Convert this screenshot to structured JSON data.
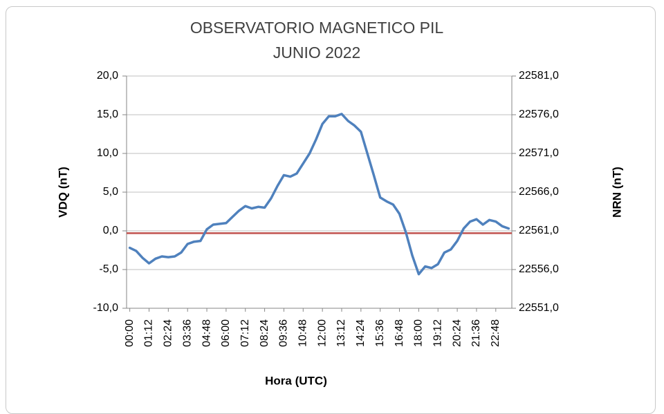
{
  "chart_data": {
    "type": "line",
    "title": "OBSERVATORIO MAGNETICO PIL",
    "subtitle": "JUNIO 2022",
    "x_label": "Hora (UTC)",
    "y_label": "VDQ (nT)",
    "y2_label": "NRN (nT)",
    "categories": [
      "00:00",
      null,
      null,
      "01:12",
      null,
      null,
      "02:24",
      null,
      null,
      "03:36",
      null,
      null,
      "04:48",
      null,
      null,
      "06:00",
      null,
      null,
      "07:12",
      null,
      null,
      "08:24",
      null,
      null,
      "09:36",
      null,
      null,
      "10:48",
      null,
      null,
      "12:00",
      null,
      null,
      "13:12",
      null,
      null,
      "14:24",
      null,
      null,
      "15:36",
      null,
      null,
      "16:48",
      null,
      null,
      "18:00",
      null,
      null,
      "19:12",
      null,
      null,
      "20:24",
      null,
      null,
      "21:36",
      null,
      null,
      "22:48",
      null,
      null
    ],
    "series": [
      {
        "color": "#4f81bd",
        "values": [
          -2.2,
          -2.6,
          -3.5,
          -4.2,
          -3.6,
          -3.3,
          -3.4,
          -3.3,
          -2.8,
          -1.7,
          -1.4,
          -1.3,
          0.2,
          0.8,
          0.9,
          1.0,
          1.8,
          2.6,
          3.2,
          2.9,
          3.1,
          3.0,
          4.2,
          5.8,
          7.2,
          7.0,
          7.4,
          8.7,
          10.0,
          11.8,
          13.8,
          14.8,
          14.8,
          15.1,
          14.2,
          13.6,
          12.8,
          10.0,
          7.2,
          4.3,
          3.8,
          3.4,
          2.2,
          -0.2,
          -3.2,
          -5.6,
          -4.6,
          -4.8,
          -4.3,
          -2.8,
          -2.4,
          -1.3,
          0.3,
          1.2,
          1.5,
          0.8,
          1.4,
          1.2,
          0.6,
          0.3
        ]
      }
    ],
    "reference_lines": [
      {
        "value": 22560.7,
        "axis": "y2",
        "color": "#c0504d"
      }
    ],
    "ylim": [
      -10,
      20
    ],
    "yticks": [
      {
        "value": -10,
        "label": "-10,0"
      },
      {
        "value": -5,
        "label": "-5,0"
      },
      {
        "value": 0,
        "label": "0,0"
      },
      {
        "value": 5,
        "label": "5,0"
      },
      {
        "value": 10,
        "label": "10,0"
      },
      {
        "value": 15,
        "label": "15,0"
      },
      {
        "value": 20,
        "label": "20,0"
      }
    ],
    "y2lim": [
      22551,
      22581
    ],
    "y2ticks": [
      {
        "value": 22551,
        "label": "22551,0"
      },
      {
        "value": 22556,
        "label": "22556,0"
      },
      {
        "value": 22561,
        "label": "22561,0"
      },
      {
        "value": 22566,
        "label": "22566,0"
      },
      {
        "value": 22571,
        "label": "22571,0"
      },
      {
        "value": 22576,
        "label": "22576,0"
      },
      {
        "value": 22581,
        "label": "22581,0"
      }
    ],
    "grid": true
  }
}
